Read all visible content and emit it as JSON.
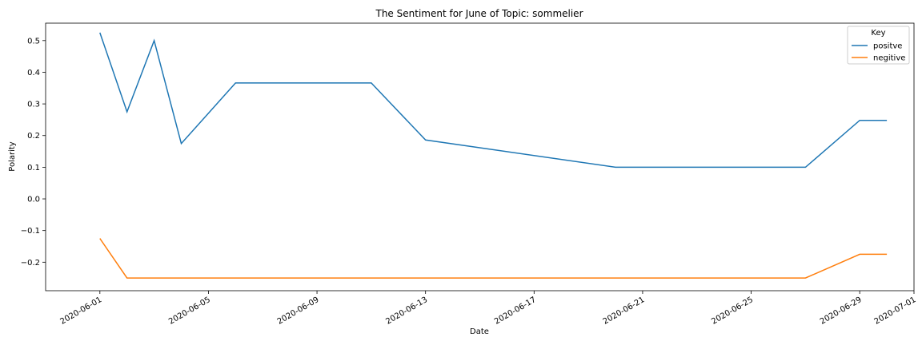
{
  "chart_data": {
    "type": "line",
    "title": "The Sentiment for June of Topic: sommelier",
    "xlabel": "Date",
    "ylabel": "Polarity",
    "xlim": [
      "2020-05-30",
      "2020-07-01"
    ],
    "ylim": [
      -0.29,
      0.555
    ],
    "x_ticks": [
      "2020-06-01",
      "2020-06-05",
      "2020-06-09",
      "2020-06-13",
      "2020-06-17",
      "2020-06-21",
      "2020-06-25",
      "2020-06-29",
      "2020-07-01"
    ],
    "y_ticks": [
      "-0.2",
      "-0.1",
      "0.0",
      "0.1",
      "0.2",
      "0.3",
      "0.4",
      "0.5"
    ],
    "legend": {
      "title": "Key",
      "position": "top-right"
    },
    "grid": false,
    "series": [
      {
        "name": "positve",
        "color": "#1f77b4",
        "points": [
          [
            "2020-06-01",
            0.525
          ],
          [
            "2020-06-02",
            0.275
          ],
          [
            "2020-06-03",
            0.5
          ],
          [
            "2020-06-04",
            0.175
          ],
          [
            "2020-06-06",
            0.366
          ],
          [
            "2020-06-11",
            0.366
          ],
          [
            "2020-06-13",
            0.186
          ],
          [
            "2020-06-20",
            0.1
          ],
          [
            "2020-06-27",
            0.1
          ],
          [
            "2020-06-29",
            0.248
          ],
          [
            "2020-06-30",
            0.248
          ]
        ]
      },
      {
        "name": "negitive",
        "color": "#ff7f0e",
        "points": [
          [
            "2020-06-01",
            -0.125
          ],
          [
            "2020-06-02",
            -0.25
          ],
          [
            "2020-06-27",
            -0.25
          ],
          [
            "2020-06-29",
            -0.175
          ],
          [
            "2020-06-30",
            -0.175
          ]
        ]
      }
    ]
  }
}
